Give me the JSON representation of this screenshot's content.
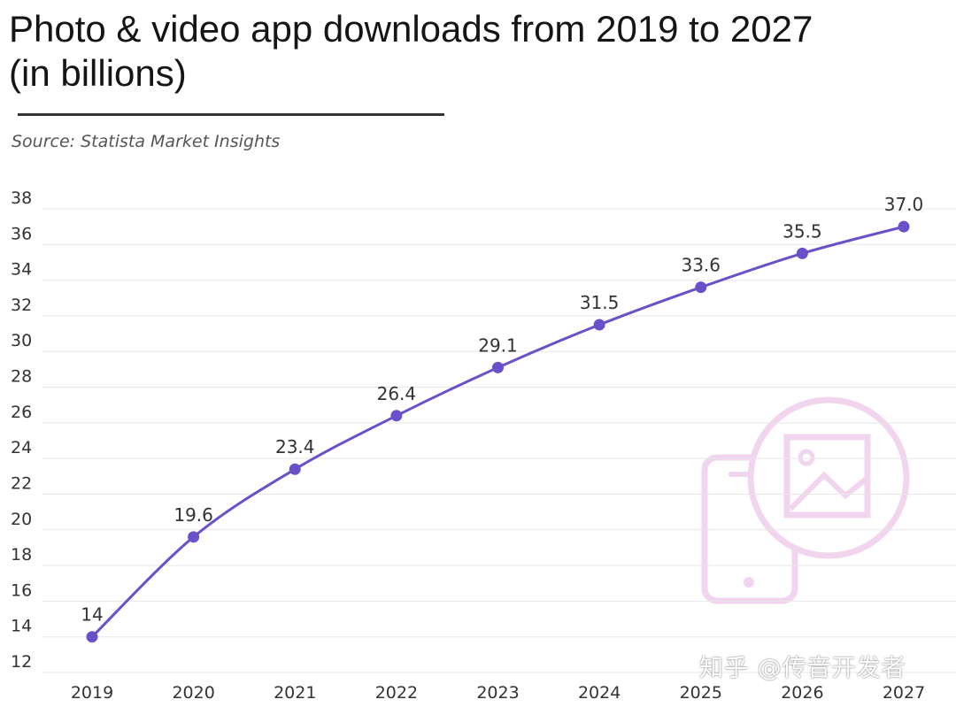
{
  "header": {
    "title_line1": "Photo & video app downloads from 2019 to 2027",
    "title_line2": "(in billions)",
    "source": "Source: Statista Market Insights"
  },
  "watermark": "知乎 @传音开发者",
  "decoration": {
    "icon": "phone-photo-icon",
    "color": "#f1d4ee"
  },
  "chart_data": {
    "type": "line",
    "title": "Photo & video app downloads from 2019 to 2027 (in billions)",
    "x": [
      "2019",
      "2020",
      "2021",
      "2022",
      "2023",
      "2024",
      "2025",
      "2026",
      "2027"
    ],
    "series": [
      {
        "values": [
          14,
          19.6,
          23.4,
          26.4,
          29.1,
          31.5,
          33.6,
          35.5,
          37.0
        ],
        "labels": [
          "14",
          "19.6",
          "23.4",
          "26.4",
          "29.1",
          "31.5",
          "33.6",
          "35.5",
          "37.0"
        ],
        "color": "#6a51c9"
      }
    ],
    "yticks": [
      12,
      14,
      16,
      18,
      20,
      22,
      24,
      26,
      28,
      30,
      32,
      34,
      36,
      38
    ],
    "ylim": [
      12,
      38
    ],
    "grid": true,
    "legend": "none"
  }
}
